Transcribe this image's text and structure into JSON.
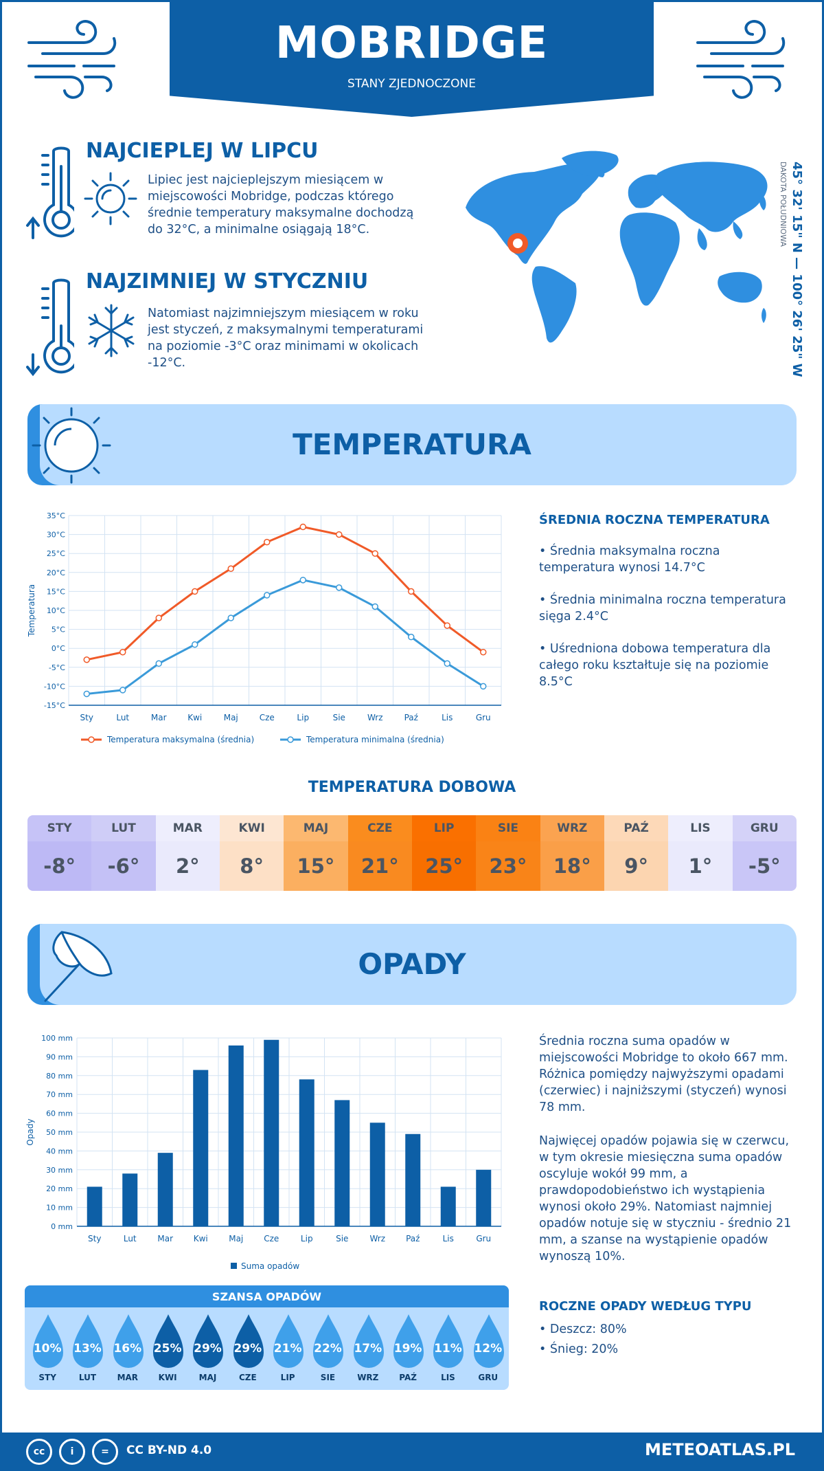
{
  "header": {
    "city": "MOBRIDGE",
    "country": "STANY ZJEDNOCZONE"
  },
  "hottest": {
    "title": "NAJCIEPLEJ W LIPCU",
    "text": "Lipiec jest najcieplejszym miesiącem w miejscowości Mobridge, podczas którego średnie temperatury maksymalne dochodzą do 32°C, a minimalne osiągają 18°C."
  },
  "coldest": {
    "title": "NAJZIMNIEJ W STYCZNIU",
    "text": "Natomiast najzimniejszym miesiącem w roku jest styczeń, z maksymalnymi temperaturami na poziomie -3°C oraz minimami w okolicach -12°C."
  },
  "location": {
    "coords": "45° 32' 15\" N — 100° 26' 25\" W",
    "region": "DAKOTA POŁUDNIOWA"
  },
  "temperature_section": {
    "title": "TEMPERATURA",
    "side_title": "ŚREDNIA ROCZNA TEMPERATURA",
    "bullets": [
      "• Średnia maksymalna roczna temperatura wynosi 14.7°C",
      "• Średnia minimalna roczna temperatura sięga 2.4°C",
      "• Uśredniona dobowa temperatura dla całego roku kształtuje się na poziomie 8.5°C"
    ]
  },
  "daily_section": {
    "title": "TEMPERATURA DOBOWA",
    "months": [
      "STY",
      "LUT",
      "MAR",
      "KWI",
      "MAJ",
      "CZE",
      "LIP",
      "SIE",
      "WRZ",
      "PAŹ",
      "LIS",
      "GRU"
    ],
    "values": [
      "-8°",
      "-6°",
      "2°",
      "8°",
      "15°",
      "21°",
      "25°",
      "23°",
      "18°",
      "9°",
      "1°",
      "-5°"
    ],
    "head_colors": [
      "#c6c3f7",
      "#cfcdf7",
      "#eeeefd",
      "#fde6d2",
      "#fcb870",
      "#fa8c1e",
      "#fa7000",
      "#fa8214",
      "#fba350",
      "#fdd9b8",
      "#eeeefd",
      "#d4d2f8"
    ],
    "cell_colors": [
      "#bdb9f5",
      "#c4c1f6",
      "#eaeafc",
      "#fde0c6",
      "#fbaf60",
      "#f98a20",
      "#f86f00",
      "#f98418",
      "#fa9f48",
      "#fcd5b0",
      "#eaeafc",
      "#c9c6f7"
    ]
  },
  "precip_section": {
    "title": "OPADY",
    "text1": "Średnia roczna suma opadów w miejscowości Mobridge to około 667 mm. Różnica pomiędzy najwyższymi opadami (czerwiec) i najniższymi (styczeń) wynosi 78 mm.",
    "text2": "Najwięcej opadów pojawia się w czerwcu, w tym okresie miesięczna suma opadów oscyluje wokół 99 mm, a prawdopodobieństwo ich wystąpienia wynosi około 29%. Natomiast najmniej opadów notuje się w styczniu - średnio 21 mm, a szanse na wystąpienie opadów wynoszą 10%.",
    "type_title": "ROCZNE OPADY WEDŁUG TYPU",
    "types": [
      "• Deszcz: 80%",
      "• Śnieg: 20%"
    ]
  },
  "chance_section": {
    "title": "SZANSA OPADÓW",
    "months": [
      "STY",
      "LUT",
      "MAR",
      "KWI",
      "MAJ",
      "CZE",
      "LIP",
      "SIE",
      "WRZ",
      "PAŹ",
      "LIS",
      "GRU"
    ],
    "values": [
      "10%",
      "13%",
      "16%",
      "25%",
      "29%",
      "29%",
      "21%",
      "22%",
      "17%",
      "19%",
      "11%",
      "12%"
    ],
    "drop_colors": [
      "#3fa0ea",
      "#3fa0ea",
      "#3fa0ea",
      "#0d5fa6",
      "#0d5fa6",
      "#0d5fa6",
      "#3fa0ea",
      "#3fa0ea",
      "#3fa0ea",
      "#3fa0ea",
      "#3fa0ea",
      "#3fa0ea"
    ]
  },
  "footer": {
    "license": "CC BY-ND 4.0",
    "site": "METEOATLAS.PL",
    "icons": [
      "cc-icon",
      "by-icon",
      "nd-icon"
    ]
  },
  "chart_data": [
    {
      "type": "line",
      "categories": [
        "Sty",
        "Lut",
        "Mar",
        "Kwi",
        "Maj",
        "Cze",
        "Lip",
        "Sie",
        "Wrz",
        "Paź",
        "Lis",
        "Gru"
      ],
      "series": [
        {
          "name": "Temperatura maksymalna (średnia)",
          "values": [
            -3,
            -1,
            8,
            15,
            21,
            28,
            32,
            30,
            25,
            15,
            6,
            -1
          ],
          "color": "#f05a28"
        },
        {
          "name": "Temperatura minimalna (średnia)",
          "values": [
            -12,
            -11,
            -4,
            1,
            8,
            14,
            18,
            16,
            11,
            3,
            -4,
            -10
          ],
          "color": "#3a9ad9"
        }
      ],
      "ylabel": "Temperatura",
      "ylim": [
        -15,
        35
      ],
      "yticks": [
        "-15°C",
        "-10°C",
        "-5°C",
        "0°C",
        "5°C",
        "10°C",
        "15°C",
        "20°C",
        "25°C",
        "30°C",
        "35°C"
      ],
      "grid": true,
      "legend": "bottom"
    },
    {
      "type": "bar",
      "categories": [
        "Sty",
        "Lut",
        "Mar",
        "Kwi",
        "Maj",
        "Cze",
        "Lip",
        "Sie",
        "Wrz",
        "Paź",
        "Lis",
        "Gru"
      ],
      "series": [
        {
          "name": "Suma opadów",
          "values": [
            21,
            28,
            39,
            83,
            96,
            99,
            78,
            67,
            55,
            49,
            21,
            30
          ],
          "color": "#0d5fa6"
        }
      ],
      "ylabel": "Opady",
      "ylim": [
        0,
        100
      ],
      "yticks": [
        "0 mm",
        "10 mm",
        "20 mm",
        "30 mm",
        "40 mm",
        "50 mm",
        "60 mm",
        "70 mm",
        "80 mm",
        "90 mm",
        "100 mm"
      ],
      "grid": true,
      "legend": "bottom"
    }
  ]
}
